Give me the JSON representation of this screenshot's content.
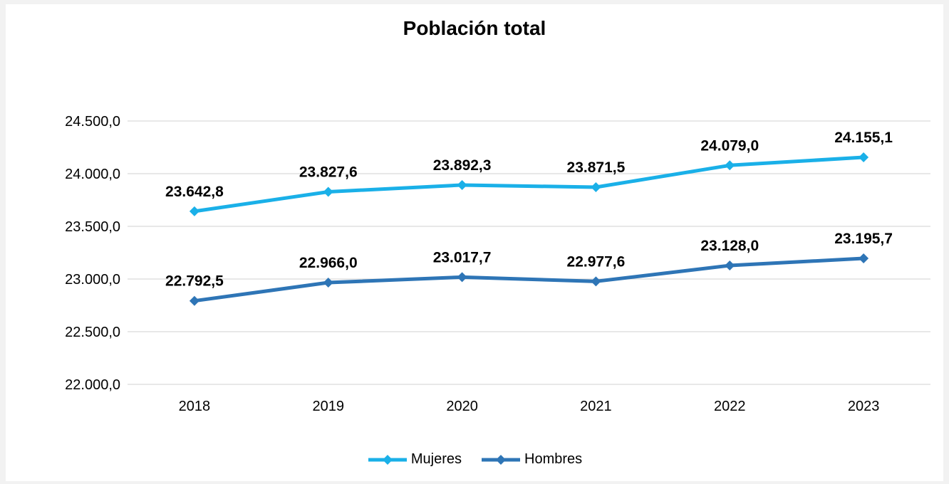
{
  "chart_data": {
    "type": "line",
    "title": "Población total",
    "categories": [
      "2018",
      "2019",
      "2020",
      "2021",
      "2022",
      "2023"
    ],
    "series": [
      {
        "name": "Mujeres",
        "color": "#1ab0e8",
        "values": [
          23642.8,
          23827.6,
          23892.3,
          23871.5,
          24079.0,
          24155.1
        ],
        "labels": [
          "23.642,8",
          "23.827,6",
          "23.892,3",
          "23.871,5",
          "24.079,0",
          "24.155,1"
        ]
      },
      {
        "name": "Hombres",
        "color": "#2e75b6",
        "values": [
          22792.5,
          22966.0,
          23017.7,
          22977.6,
          23128.0,
          23195.7
        ],
        "labels": [
          "22.792,5",
          "22.966,0",
          "23.017,7",
          "22.977,6",
          "23.128,0",
          "23.195,7"
        ]
      }
    ],
    "ylim": [
      22000,
      24500
    ],
    "yticks": [
      22000,
      22500,
      23000,
      23500,
      24000,
      24500
    ],
    "ytick_labels": [
      "22.000,0",
      "22.500,0",
      "23.000,0",
      "23.500,0",
      "24.000,0",
      "24.500,0"
    ],
    "grid": true,
    "legend_position": "bottom"
  }
}
